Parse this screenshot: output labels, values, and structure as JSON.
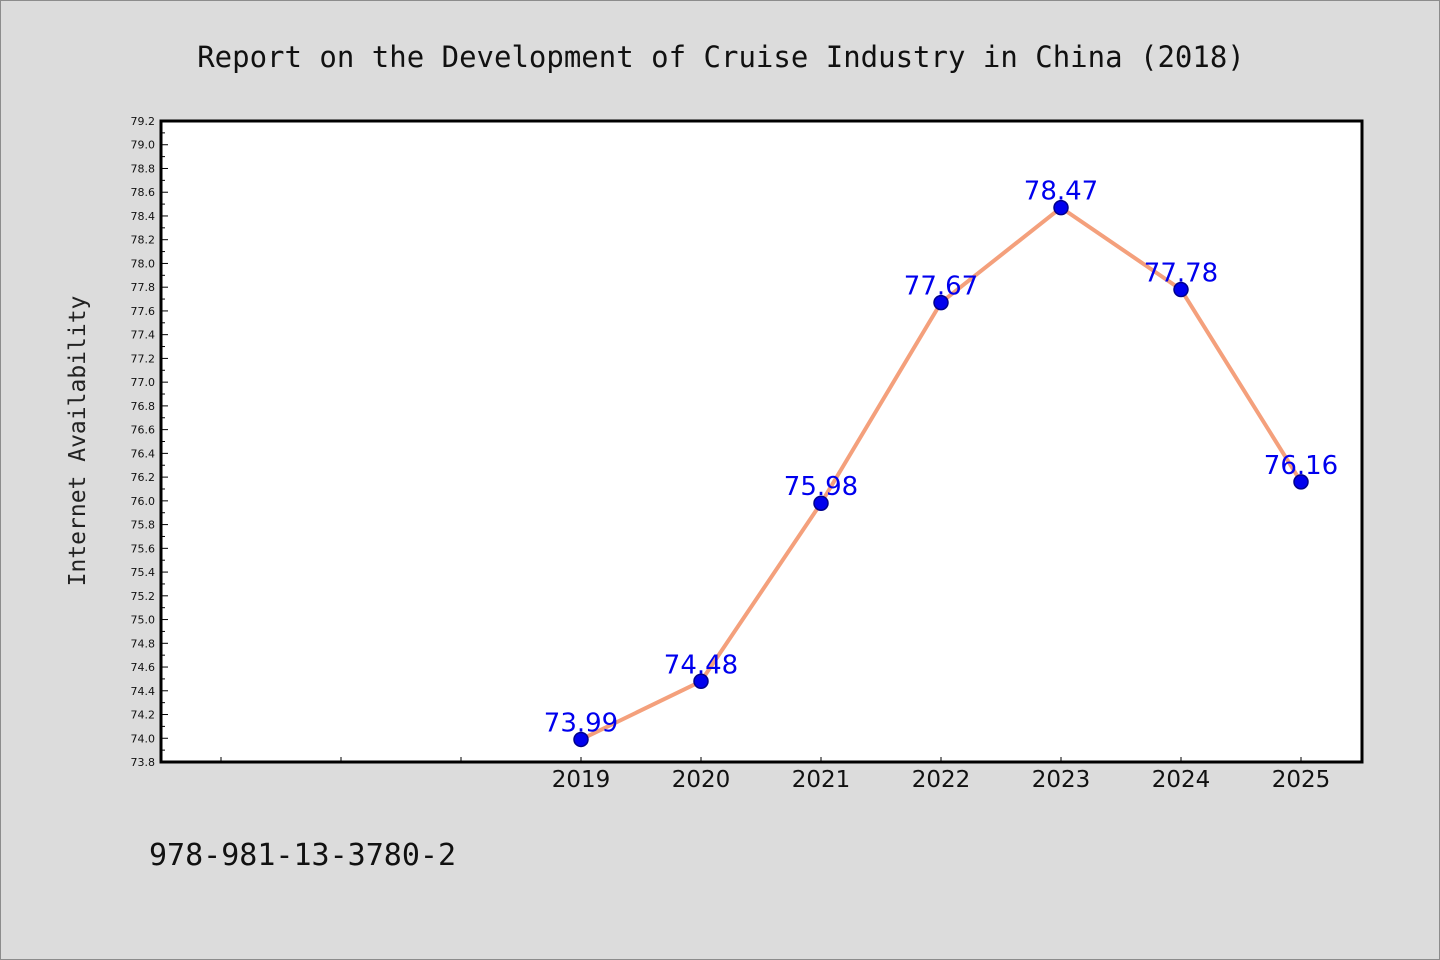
{
  "chart_data": {
    "type": "line",
    "title": "Report on the Development of Cruise Industry in China (2018)",
    "xlabel": "",
    "ylabel": "Internet Availability",
    "categories": [
      "",
      "",
      "",
      "2019",
      "2020",
      "2021",
      "2022",
      "2023",
      "2024",
      "2025"
    ],
    "series": [
      {
        "values": [
          null,
          null,
          null,
          73.99,
          74.48,
          75.98,
          77.67,
          78.47,
          77.78,
          76.16
        ],
        "data_labels": [
          "",
          "",
          "",
          "73.99",
          "74.48",
          "75.98",
          "77.67",
          "78.47",
          "77.78",
          "76.16"
        ]
      }
    ],
    "ylim": [
      73.8,
      79.2
    ],
    "ytick_step": 0.2,
    "ytick_labels": [
      "73.8",
      "74.0",
      "74.2",
      "74.4",
      "74.6",
      "74.8",
      "75.0",
      "75.2",
      "75.4",
      "75.6",
      "75.8",
      "76.0",
      "76.2",
      "76.4",
      "76.6",
      "76.8",
      "77.0",
      "77.2",
      "77.4",
      "77.6",
      "77.8",
      "78.0",
      "78.2",
      "78.4",
      "78.6",
      "78.8",
      "79.0",
      "79.2"
    ],
    "grid": false,
    "legend": "none"
  },
  "footnote": "978-981-13-3780-2",
  "colors": {
    "background": "#dcdcdc",
    "plot_background": "#ffffff",
    "line": "#f4a07c",
    "marker_fill": "#0000ee",
    "marker_edge": "#00008b",
    "data_label": "#0000ee",
    "axis": "#000000"
  }
}
